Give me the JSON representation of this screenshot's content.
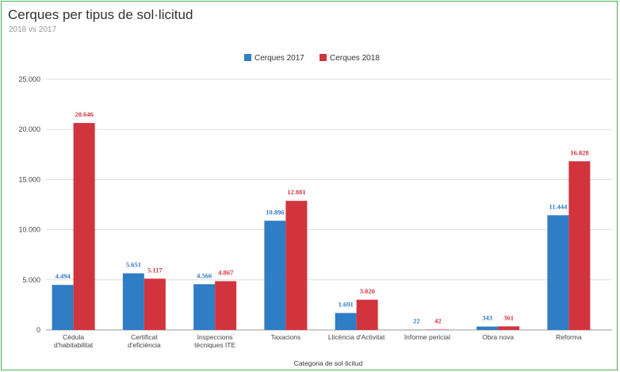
{
  "chart_data": {
    "type": "bar",
    "title": "Cerques per tipus de sol·licitud",
    "subtitle": "2018 vs 2017",
    "xlabel": "Categoria de sol·licitud",
    "ylabel": "",
    "ylim": [
      0,
      25000
    ],
    "yticks": [
      0,
      5000,
      10000,
      15000,
      20000,
      25000
    ],
    "ytick_labels": [
      "0",
      "5.000",
      "10.000",
      "15.000",
      "20.000",
      "25.000"
    ],
    "grid": true,
    "legend_position": "top",
    "categories": [
      [
        "Cèdula",
        "d'habitabilitat"
      ],
      [
        "Certificat",
        "d'eficiència"
      ],
      [
        "Inspeccions",
        "tècniques ITE"
      ],
      [
        "Taxacions"
      ],
      [
        "Llicència d'Activitat"
      ],
      [
        "Informe pericial"
      ],
      [
        "Obra nova"
      ],
      [
        "Reforma"
      ]
    ],
    "series": [
      {
        "name": "Cerques 2017",
        "color": "#2f7dc4",
        "values": [
          4494,
          5651,
          4566,
          10896,
          1691,
          22,
          343,
          11444
        ],
        "labels": [
          "4.494",
          "5.651",
          "4.566",
          "10.896",
          "1.691",
          "22",
          "343",
          "11.444"
        ]
      },
      {
        "name": "Cerques 2018",
        "color": "#d2343e",
        "values": [
          20646,
          5117,
          4867,
          12881,
          3020,
          42,
          361,
          16828
        ],
        "labels": [
          "20.646",
          "5.117",
          "4.867",
          "12.881",
          "3.020",
          "42",
          "361",
          "16.828"
        ]
      }
    ]
  }
}
